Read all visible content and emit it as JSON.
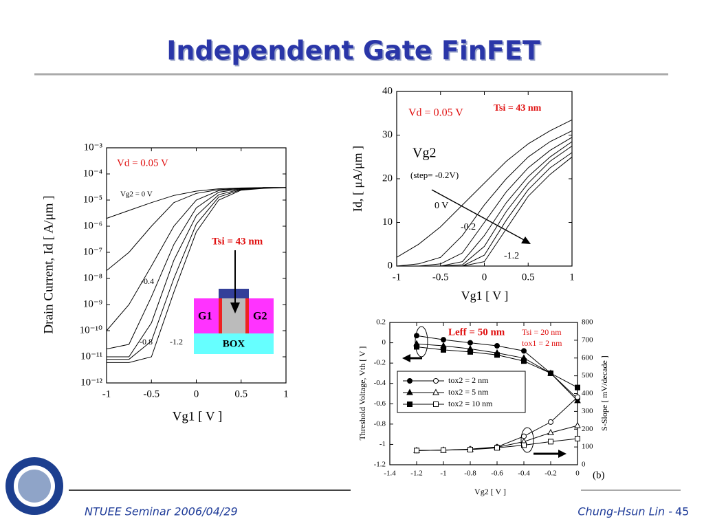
{
  "slide": {
    "title": "Independent Gate FinFET",
    "footer_left": "NTUEE Seminar 2006/04/29",
    "footer_right": "Chung-Hsun Lin -",
    "slide_number": 45
  },
  "chart_data": [
    {
      "type": "line",
      "log_y": true,
      "xlabel": "Vg1 [ V ]",
      "ylabel": "Drain Current, Id [ A/μm ]",
      "xlim": [
        -1,
        1
      ],
      "xticks": [
        -1,
        -0.5,
        0,
        0.5,
        1
      ],
      "ylim": [
        1e-12,
        0.001
      ],
      "yticks": [
        {
          "value": 0.001,
          "label": "10⁻³"
        },
        {
          "value": 0.0001,
          "label": "10⁻⁴"
        },
        {
          "value": 1e-05,
          "label": "10⁻⁵"
        },
        {
          "value": 1e-06,
          "label": "10⁻⁶"
        },
        {
          "value": 1e-07,
          "label": "10⁻⁷"
        },
        {
          "value": 1e-08,
          "label": "10⁻⁸"
        },
        {
          "value": 1e-09,
          "label": "10⁻⁹"
        },
        {
          "value": 1e-10,
          "label": "10⁻¹⁰"
        },
        {
          "value": 1e-11,
          "label": "10⁻¹¹"
        },
        {
          "value": 1e-12,
          "label": "10⁻¹²"
        }
      ],
      "x": [
        -1,
        -0.75,
        -0.5,
        -0.25,
        0,
        0.25,
        0.5,
        0.75,
        1
      ],
      "series": [
        {
          "color": "#000000",
          "values": [
            2e-06,
            4e-06,
            8e-06,
            1.5e-05,
            2.2e-05,
            2.7e-05,
            2.9e-05,
            3e-05,
            3e-05
          ]
        },
        {
          "color": "#000000",
          "values": [
            2e-08,
            1e-07,
            1e-06,
            8e-06,
            1.8e-05,
            2.5e-05,
            2.8e-05,
            3e-05,
            3e-05
          ]
        },
        {
          "color": "#000000",
          "values": [
            1e-10,
            1e-09,
            3e-08,
            1e-06,
            1e-05,
            2.3e-05,
            2.8e-05,
            3e-05,
            3e-05
          ]
        },
        {
          "color": "#000000",
          "values": [
            2e-11,
            3e-11,
            2e-09,
            2e-07,
            5e-06,
            2e-05,
            2.7e-05,
            3e-05,
            3e-05
          ]
        },
        {
          "color": "#000000",
          "values": [
            1e-11,
            1e-11,
            2e-10,
            5e-08,
            2.5e-06,
            1.6e-05,
            2.6e-05,
            2.9e-05,
            3e-05
          ]
        },
        {
          "color": "#000000",
          "values": [
            8e-12,
            8e-12,
            4e-11,
            1e-08,
            1.2e-06,
            1.3e-05,
            2.5e-05,
            2.9e-05,
            3e-05
          ]
        },
        {
          "color": "#000000",
          "values": [
            6e-12,
            6e-12,
            1e-11,
            3e-09,
            6e-07,
            1e-05,
            2.4e-05,
            2.8e-05,
            3e-05
          ]
        }
      ],
      "annotations": [
        "Vd = 0.05 V",
        "Vg2 = 0 V",
        "-0.4",
        "-0.8",
        "-1.2",
        "Tsi = 43 nm",
        "G1",
        "G2",
        "BOX"
      ]
    },
    {
      "type": "line",
      "xlabel": "Vg1 [ V ]",
      "ylabel": "Id, [ μA/μm ]",
      "xlim": [
        -1,
        1
      ],
      "xticks": [
        -1,
        -0.5,
        0,
        0.5,
        1
      ],
      "ylim": [
        0,
        40
      ],
      "yticks": [
        0,
        10,
        20,
        30,
        40
      ],
      "x": [
        -1,
        -0.75,
        -0.5,
        -0.25,
        0,
        0.25,
        0.5,
        0.75,
        1
      ],
      "series": [
        {
          "color": "#000000",
          "values": [
            2,
            5,
            9,
            14,
            19,
            24,
            28,
            31,
            33.5
          ]
        },
        {
          "color": "#000000",
          "values": [
            0,
            0.5,
            2,
            7,
            14,
            20,
            25,
            28.5,
            31
          ]
        },
        {
          "color": "#000000",
          "values": [
            0,
            0,
            0.5,
            3,
            10,
            17,
            22.5,
            26.5,
            29.5
          ]
        },
        {
          "color": "#000000",
          "values": [
            0,
            0,
            0,
            1,
            7,
            14.5,
            20.5,
            25,
            28.5
          ]
        },
        {
          "color": "#000000",
          "values": [
            0,
            0,
            0,
            0.3,
            4.5,
            12.5,
            19,
            24,
            27.5
          ]
        },
        {
          "color": "#000000",
          "values": [
            0,
            0,
            0,
            0,
            2.5,
            10.5,
            17.5,
            22.5,
            26
          ]
        },
        {
          "color": "#000000",
          "values": [
            0,
            0,
            0,
            0,
            1,
            8.5,
            16,
            21,
            25
          ]
        }
      ],
      "annotations": [
        "Vd = 0.05 V",
        "Tsi = 43 nm",
        "Vg2",
        "(step= -0.2V)",
        "0 V",
        "-0.2",
        "-1.2"
      ]
    },
    {
      "type": "line",
      "xlabel": "Vg2 [ V ]",
      "ylabel": "Threshold Voltage, Vth [ V ]",
      "y2label": "S-Slope [ mV/decade ]",
      "xlim": [
        -1.4,
        0
      ],
      "xticks": [
        -1.4,
        -1.2,
        -1,
        -0.8,
        -0.6,
        -0.4,
        -0.2,
        0
      ],
      "ylim": [
        -1.2,
        0.2
      ],
      "yticks": [
        -1.2,
        -1,
        -0.8,
        -0.6,
        -0.4,
        -0.2,
        0,
        0.2
      ],
      "y2lim": [
        0,
        800
      ],
      "y2ticks": [
        0,
        100,
        200,
        300,
        400,
        500,
        600,
        700,
        800
      ],
      "x": [
        -1.2,
        -1,
        -0.8,
        -0.6,
        -0.4,
        -0.2,
        0
      ],
      "series": [
        {
          "name": "tox2 = 2 nm",
          "color": "#000000",
          "marker": "circle",
          "filled": true,
          "values": [
            0.07,
            0.03,
            0,
            -0.03,
            -0.08,
            -0.3,
            -0.55
          ]
        },
        {
          "name": "tox2 = 5 nm",
          "color": "#000000",
          "marker": "triangle",
          "filled": true,
          "values": [
            -0.01,
            -0.03,
            -0.06,
            -0.1,
            -0.15,
            -0.3,
            -0.57
          ]
        },
        {
          "name": "tox2 = 10 nm",
          "color": "#000000",
          "marker": "square",
          "filled": true,
          "values": [
            -0.04,
            -0.07,
            -0.09,
            -0.12,
            -0.18,
            -0.3,
            -0.44
          ]
        },
        {
          "color": "#000000",
          "marker": "circle",
          "filled": false,
          "axis": "y2",
          "values": [
            80,
            82,
            88,
            100,
            160,
            240,
            380
          ]
        },
        {
          "color": "#000000",
          "marker": "triangle",
          "filled": false,
          "axis": "y2",
          "values": [
            80,
            82,
            86,
            98,
            130,
            180,
            220
          ]
        },
        {
          "color": "#000000",
          "marker": "square",
          "filled": false,
          "axis": "y2",
          "values": [
            80,
            82,
            85,
            95,
            110,
            130,
            147
          ]
        }
      ],
      "annotations": [
        "Leff = 50 nm",
        "Tsi = 20 nm",
        "tox1 = 2 nm",
        "(b)"
      ]
    }
  ]
}
